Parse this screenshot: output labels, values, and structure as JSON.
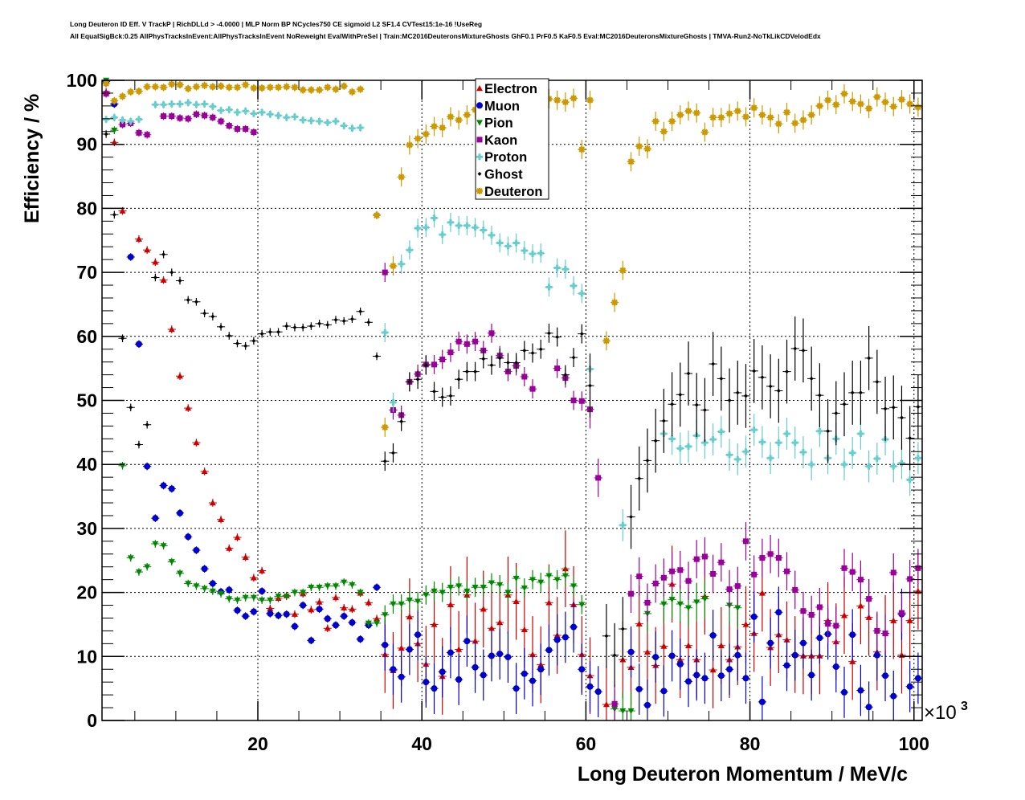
{
  "header": {
    "line1": "Long Deuteron ID Eff. V TrackP | RichDLLd > -4.0000 | MLP Norm BP NCycles750 CE sigmoid L2 SF1.4 CVTest15:1e-16 !UseReg",
    "line2": "All EqualSigBck:0.25 AllPhysTracksInEvent:AllPhysTracksInEvent NoReweight EvalWithPreSel | Train:MC2016DeuteronsMixtureGhosts GhF0.1 PrF0.5 KaF0.5 Eval:MC2016DeuteronsMixtureGhosts | TMVA-Run2-NoTkLikCDVelodEdx"
  },
  "chart_data": {
    "type": "scatter",
    "title": "Long Deuteron ID Eff. V TrackP | RichDLLd > -4.0000",
    "xlabel": "Long Deuteron Momentum / MeV/c",
    "ylabel": "Efficiency / %",
    "x_multiplier": "×10^3",
    "xlim": [
      1,
      101
    ],
    "ylim": [
      0,
      100
    ],
    "xticks": [
      20,
      40,
      60,
      80,
      100
    ],
    "yticks": [
      0,
      10,
      20,
      30,
      40,
      50,
      60,
      70,
      80,
      90,
      100
    ],
    "grid": true,
    "legend_position": "top-center",
    "x": [
      1.5,
      2.5,
      3.5,
      4.5,
      5.5,
      6.5,
      7.5,
      8.5,
      9.5,
      10.5,
      11.5,
      12.5,
      13.5,
      14.5,
      15.5,
      16.5,
      17.5,
      18.5,
      19.5,
      20.5,
      21.5,
      22.5,
      23.5,
      24.5,
      25.5,
      26.5,
      27.5,
      28.5,
      29.5,
      30.5,
      31.5,
      32.5,
      33.5,
      34.5,
      35.5,
      36.5,
      37.5,
      38.5,
      39.5,
      40.5,
      41.5,
      42.5,
      43.5,
      44.5,
      45.5,
      46.5,
      47.5,
      48.5,
      49.5,
      50.5,
      51.5,
      52.5,
      53.5,
      54.5,
      55.5,
      56.5,
      57.5,
      58.5,
      59.5,
      60.5,
      61.5,
      62.5,
      63.5,
      64.5,
      65.5,
      66.5,
      67.5,
      68.5,
      69.5,
      70.5,
      71.5,
      72.5,
      73.5,
      74.5,
      75.5,
      76.5,
      77.5,
      78.5,
      79.5,
      80.5,
      81.5,
      82.5,
      83.5,
      84.5,
      85.5,
      86.5,
      87.5,
      88.5,
      89.5,
      90.5,
      91.5,
      92.5,
      93.5,
      94.5,
      95.5,
      96.5,
      97.5,
      98.5,
      99.5,
      100.5
    ],
    "series": [
      {
        "name": "Electron",
        "color": "#cc0000",
        "marker": "triangle-up",
        "values": [
          98.2,
          90.3,
          79.6,
          null,
          75.2,
          73.5,
          71.6,
          68.8,
          61.1,
          53.8,
          48.8,
          43.4,
          38.9,
          34.0,
          31.4,
          26.9,
          28.6,
          25.5,
          22.3,
          23.4,
          17.5,
          19.1,
          19.5,
          16.6,
          19.8,
          17.3,
          18.5,
          14.4,
          19.2,
          17.6,
          17.4,
          19.9,
          18.4,
          15.9,
          10.3,
          7.8,
          11.3,
          16.2,
          12.0,
          8.8,
          15.0,
          6.9,
          18.1,
          11.1,
          19.6,
          12.4,
          17.4,
          14.4,
          15.3,
          19.6,
          18.6,
          14.2,
          10.3,
          8.7,
          18.4,
          13.3,
          23.7,
          18.1,
          10.3,
          7.0,
          null,
          2.5,
          null,
          9.5,
          8.3,
          15.1,
          10.7,
          8.6,
          11.6,
          21.3,
          9.5,
          11.7,
          9.5,
          19.4,
          7.9,
          11.7,
          9.5,
          11.5,
          15.0,
          13.6,
          19.9,
          11.4,
          13.4,
          12.6,
          10.3,
          10.1,
          10.1,
          10.1,
          15.6,
          12.3,
          16.4,
          9.2,
          17.9,
          16.1,
          10.7,
          13.6,
          15.6,
          10.2,
          15.6,
          20.2
        ]
      },
      {
        "name": "Muon",
        "color": "#0000cc",
        "marker": "circle",
        "values": [
          99.8,
          96.3,
          null,
          72.4,
          58.8,
          39.7,
          31.6,
          36.7,
          36.2,
          32.4,
          28.7,
          26.6,
          23.7,
          21.4,
          20.1,
          20.4,
          17.2,
          16.3,
          17.0,
          20.2,
          16.7,
          16.4,
          16.6,
          14.7,
          18.0,
          12.5,
          17.4,
          15.9,
          14.9,
          16.3,
          15.3,
          12.7,
          14.9,
          20.8,
          11.8,
          8.0,
          6.8,
          11.1,
          13.4,
          6.0,
          5.0,
          7.6,
          10.6,
          6.4,
          12.4,
          8.3,
          7.1,
          10.1,
          10.4,
          9.9,
          5.0,
          7.3,
          6.2,
          8.0,
          11.0,
          12.6,
          13.0,
          14.6,
          8.0,
          5.3,
          4.5,
          null,
          null,
          null,
          10.7,
          4.9,
          2.4,
          9.9,
          4.6,
          10.1,
          8.8,
          6.1,
          7.1,
          6.6,
          13.3,
          7.0,
          8.0,
          10.2,
          6.6,
          16.2,
          2.9,
          12.1,
          16.9,
          8.6,
          10.2,
          12.1,
          7.1,
          12.9,
          13.5,
          8.4,
          4.4,
          13.4,
          4.7,
          2.1,
          10.2,
          7.0,
          3.8,
          16.6,
          5.3,
          6.6
        ]
      },
      {
        "name": "Pion",
        "color": "#008800",
        "marker": "triangle-down",
        "values": [
          100.0,
          92.2,
          39.8,
          25.4,
          23.2,
          24.0,
          27.6,
          27.3,
          24.8,
          23.0,
          21.4,
          21.0,
          20.6,
          20.2,
          19.8,
          19.0,
          18.8,
          19.2,
          19.2,
          18.8,
          18.8,
          19.4,
          19.4,
          20.0,
          20.0,
          20.8,
          20.8,
          21.0,
          21.0,
          21.6,
          21.2,
          20.0,
          15.2,
          15.2,
          16.5,
          18.2,
          18.2,
          18.8,
          18.6,
          19.6,
          20.2,
          20.0,
          20.8,
          21.0,
          20.2,
          20.8,
          20.8,
          21.5,
          21.2,
          20.0,
          22.2,
          20.7,
          22.0,
          21.6,
          22.6,
          22.0,
          22.6,
          21.0,
          18.1,
          null,
          null,
          null,
          1.8,
          1.5,
          1.5,
          null,
          16.7,
          null,
          18.2,
          18.9,
          18.2,
          17.6,
          18.5,
          19.0,
          null,
          null,
          18.0,
          17.6,
          null,
          null,
          null,
          null,
          null,
          null,
          null,
          null,
          null,
          null,
          null,
          null,
          null,
          null,
          null,
          null,
          null,
          null,
          null,
          null,
          null,
          null
        ]
      },
      {
        "name": "Kaon",
        "color": "#990099",
        "marker": "square",
        "values": [
          97.9,
          null,
          93.1,
          93.3,
          91.8,
          91.5,
          null,
          94.4,
          94.4,
          94.1,
          94.0,
          94.7,
          94.5,
          94.2,
          93.6,
          92.9,
          92.4,
          92.4,
          91.9,
          null,
          null,
          null,
          null,
          null,
          null,
          null,
          null,
          null,
          null,
          null,
          null,
          null,
          null,
          null,
          70.0,
          48.5,
          47.7,
          52.9,
          54.1,
          55.6,
          55.6,
          56.4,
          57.5,
          59.2,
          58.8,
          59.2,
          57.8,
          60.5,
          57.0,
          54.5,
          55.4,
          53.7,
          51.8,
          null,
          null,
          55.0,
          53.5,
          50.0,
          49.9,
          48.6,
          37.9,
          null,
          2.6,
          null,
          19.8,
          22.5,
          18.4,
          21.4,
          22.3,
          23.3,
          23.5,
          21.8,
          25.2,
          25.6,
          22.9,
          24.7,
          20.5,
          21.0,
          28.0,
          22.8,
          25.4,
          26.0,
          25.4,
          23.3,
          20.4,
          17.1,
          16.5,
          17.7,
          15.1,
          14.8,
          23.8,
          23.2,
          22.0,
          19.0,
          14.0,
          13.6,
          23.1,
          16.8,
          22.1,
          23.8
        ]
      },
      {
        "name": "Proton",
        "color": "#66cccc",
        "marker": "cross",
        "values": [
          93.9,
          94.2,
          93.8,
          93.6,
          93.9,
          null,
          96.2,
          96.2,
          96.3,
          96.3,
          96.5,
          96.2,
          96.3,
          95.9,
          95.3,
          95.4,
          95.0,
          95.2,
          94.8,
          95.0,
          94.7,
          94.5,
          94.2,
          94.3,
          93.8,
          93.7,
          93.6,
          93.4,
          93.6,
          92.9,
          92.5,
          92.6,
          null,
          79.0,
          60.6,
          49.7,
          71.3,
          73.5,
          76.9,
          77.0,
          78.5,
          75.9,
          77.8,
          77.3,
          77.3,
          77.0,
          76.6,
          75.8,
          74.6,
          74.1,
          74.6,
          73.4,
          72.9,
          73.0,
          67.7,
          70.7,
          70.5,
          67.9,
          66.7,
          54.9,
          null,
          null,
          null,
          30.5,
          null,
          null,
          null,
          null,
          44.8,
          44.0,
          42.5,
          42.8,
          44.5,
          43.4,
          43.9,
          45.1,
          41.5,
          40.8,
          42.0,
          45.4,
          43.5,
          41.0,
          43.4,
          44.8,
          43.4,
          41.9,
          40.0,
          45.2,
          41.0,
          44.0,
          40.0,
          41.8,
          44.8,
          39.7,
          40.9,
          43.9,
          39.7,
          40.2,
          37.6,
          41.0
        ]
      },
      {
        "name": "Ghost",
        "color": "#000000",
        "marker": "diamond",
        "values": [
          91.6,
          79.0,
          59.7,
          48.9,
          43.1,
          46.2,
          69.2,
          72.8,
          70.0,
          68.7,
          65.7,
          65.4,
          63.6,
          63.1,
          61.5,
          60.1,
          58.9,
          58.5,
          59.3,
          60.4,
          60.7,
          60.7,
          61.6,
          61.4,
          61.4,
          61.6,
          62.0,
          61.8,
          62.6,
          62.4,
          62.7,
          63.9,
          62.2,
          56.9,
          40.5,
          41.8,
          46.7,
          52.9,
          53.3,
          55.5,
          51.4,
          50.5,
          50.7,
          53.3,
          54.5,
          54.5,
          56.5,
          55.5,
          56.6,
          55.9,
          55.9,
          57.8,
          57.4,
          58.0,
          60.5,
          59.9,
          54.0,
          56.7,
          60.4,
          52.3,
          null,
          13.2,
          10.2,
          14.3,
          31.8,
          37.8,
          40.6,
          43.7,
          46.8,
          49.4,
          50.9,
          54.2,
          49.3,
          48.5,
          55.7,
          53.4,
          50.0,
          51.2,
          50.7,
          54.6,
          53.6,
          52.2,
          51.5,
          54.5,
          58.1,
          57.8,
          53.4,
          50.8,
          45.2,
          48.0,
          49.4,
          51.2,
          51.2,
          56.6,
          52.9,
          48.7,
          48.9,
          47.3,
          44.1,
          49.0
        ]
      },
      {
        "name": "Deuteron",
        "color": "#cc9900",
        "marker": "star",
        "values": [
          99.5,
          96.8,
          97.5,
          98.2,
          98.3,
          99.0,
          99.0,
          98.9,
          99.4,
          99.3,
          98.7,
          99.0,
          99.2,
          99.0,
          99.1,
          98.9,
          98.9,
          99.3,
          98.8,
          98.8,
          98.9,
          98.9,
          99.0,
          98.9,
          98.5,
          98.5,
          98.5,
          98.9,
          98.6,
          99.1,
          98.2,
          98.6,
          null,
          78.9,
          45.8,
          71.0,
          84.9,
          89.9,
          90.9,
          91.6,
          92.8,
          92.6,
          94.3,
          93.8,
          94.6,
          95.4,
          95.7,
          96.4,
          96.4,
          97.2,
          null,
          null,
          null,
          null,
          97.1,
          96.9,
          96.6,
          97.2,
          89.2,
          96.9,
          null,
          59.3,
          65.3,
          70.3,
          87.3,
          89.7,
          89.3,
          93.6,
          92.0,
          93.6,
          94.6,
          95.2,
          94.9,
          91.9,
          94.2,
          94.2,
          94.8,
          95.2,
          94.3,
          95.7,
          94.6,
          94.2,
          93.2,
          95.0,
          93.3,
          93.8,
          94.6,
          96.0,
          96.9,
          96.2,
          97.9,
          96.7,
          96.3,
          95.6,
          97.4,
          96.6,
          95.9,
          97.0,
          96.3,
          95.8
        ]
      }
    ]
  },
  "legend": {
    "items": [
      {
        "label": "Electron",
        "color": "#cc0000",
        "marker": "triangle-up"
      },
      {
        "label": "Muon",
        "color": "#0000cc",
        "marker": "circle"
      },
      {
        "label": "Pion",
        "color": "#008800",
        "marker": "triangle-down"
      },
      {
        "label": "Kaon",
        "color": "#990099",
        "marker": "square"
      },
      {
        "label": "Proton",
        "color": "#66cccc",
        "marker": "cross"
      },
      {
        "label": "Ghost",
        "color": "#000000",
        "marker": "diamond"
      },
      {
        "label": "Deuteron",
        "color": "#cc9900",
        "marker": "star"
      }
    ]
  },
  "axes": {
    "x_multiplier_base": "×10",
    "x_multiplier_exp": "3"
  }
}
